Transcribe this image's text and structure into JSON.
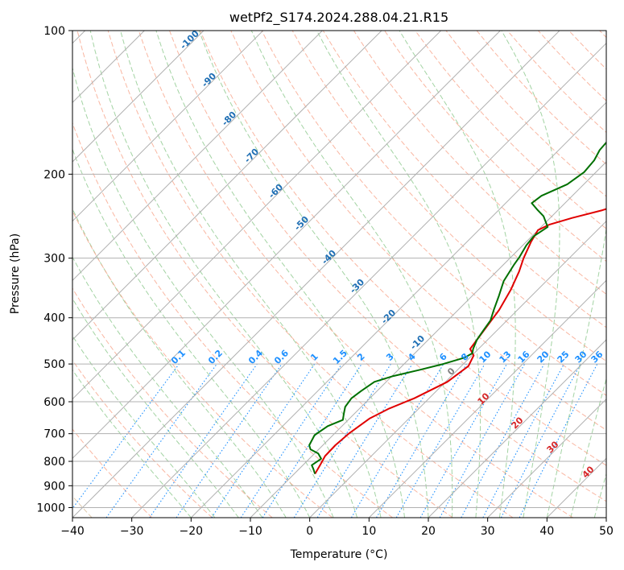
{
  "chart_data": {
    "type": "line",
    "title": "wetPf2_S174.2024.288.04.21.R15",
    "xlabel": "Temperature (°C)",
    "ylabel": "Pressure (hPa)",
    "xlim": [
      -40,
      50
    ],
    "ylim": [
      1050,
      100
    ],
    "y_scale": "log",
    "grid": true,
    "x_ticks": [
      "−40",
      "−30",
      "−20",
      "−10",
      "0",
      "10",
      "20",
      "30",
      "40",
      "50"
    ],
    "y_ticks": [
      {
        "p": 100,
        "label": "100"
      },
      {
        "p": 200,
        "label": "200"
      },
      {
        "p": 300,
        "label": "300"
      },
      {
        "p": 400,
        "label": "400"
      },
      {
        "p": 500,
        "label": "500"
      },
      {
        "p": 600,
        "label": "600"
      },
      {
        "p": 700,
        "label": "700"
      },
      {
        "p": 800,
        "label": "800"
      },
      {
        "p": 900,
        "label": "900"
      },
      {
        "p": 1000,
        "label": "1000"
      }
    ],
    "series": [
      {
        "color": "#e00000",
        "points": [
          [
            -6.5,
            850
          ],
          [
            -7.2,
            810
          ],
          [
            -7.8,
            780
          ],
          [
            -7.9,
            740
          ],
          [
            -7.6,
            700
          ],
          [
            -6.6,
            650
          ],
          [
            -5,
            620
          ],
          [
            -2.5,
            590
          ],
          [
            0.3,
            545
          ],
          [
            1.2,
            505
          ],
          [
            0.3,
            480
          ],
          [
            -1.4,
            465
          ],
          [
            -2.1,
            430
          ],
          [
            -3.1,
            385
          ],
          [
            -4.5,
            350
          ],
          [
            -6.2,
            320
          ],
          [
            -7.7,
            300
          ],
          [
            -9.2,
            277
          ],
          [
            -10,
            262
          ],
          [
            -9,
            255
          ],
          [
            -6.3,
            247
          ],
          [
            -2.5,
            238
          ],
          [
            1.1,
            227
          ],
          [
            2.7,
            218
          ],
          [
            4.2,
            206
          ],
          [
            6.7,
            193
          ],
          [
            10.5,
            180
          ],
          [
            14.5,
            165
          ],
          [
            18.1,
            150
          ],
          [
            19.3,
            143
          ],
          [
            22,
            135
          ],
          [
            25,
            127
          ],
          [
            27.4,
            120
          ],
          [
            29.4,
            113
          ],
          [
            31.3,
            107
          ],
          [
            33,
            102
          ],
          [
            33.8,
            100
          ]
        ]
      },
      {
        "color": "#007000",
        "points": [
          [
            -6.5,
            850
          ],
          [
            -7.6,
            830
          ],
          [
            -8.5,
            815
          ],
          [
            -8,
            790
          ],
          [
            -9.4,
            770
          ],
          [
            -11.4,
            755
          ],
          [
            -12.3,
            740
          ],
          [
            -13.1,
            705
          ],
          [
            -12.4,
            675
          ],
          [
            -10.9,
            655
          ],
          [
            -11.8,
            635
          ],
          [
            -12.7,
            615
          ],
          [
            -13.1,
            590
          ],
          [
            -12.7,
            570
          ],
          [
            -12,
            545
          ],
          [
            -9.8,
            530
          ],
          [
            -6.5,
            515
          ],
          [
            -3.4,
            500
          ],
          [
            -0.9,
            485
          ],
          [
            -0.3,
            475
          ],
          [
            -0.9,
            465
          ],
          [
            -1.8,
            445
          ],
          [
            -2.3,
            425
          ],
          [
            -2.8,
            405
          ],
          [
            -4,
            385
          ],
          [
            -5.5,
            360
          ],
          [
            -7.2,
            335
          ],
          [
            -8.2,
            310
          ],
          [
            -8.6,
            298
          ],
          [
            -9.4,
            282
          ],
          [
            -9.7,
            270
          ],
          [
            -8.9,
            258
          ],
          [
            -11.4,
            245
          ],
          [
            -13.4,
            238
          ],
          [
            -15.6,
            230
          ],
          [
            -15.2,
            222
          ],
          [
            -12.8,
            210
          ],
          [
            -12,
            198
          ],
          [
            -12.3,
            187
          ],
          [
            -13.1,
            178
          ],
          [
            -13.3,
            170
          ],
          [
            -12.1,
            162
          ],
          [
            -10.2,
            155
          ],
          [
            -8.6,
            146
          ],
          [
            -7.3,
            138
          ],
          [
            -5.9,
            129
          ],
          [
            -4.5,
            121
          ],
          [
            -3.2,
            114
          ],
          [
            -1.7,
            107
          ],
          [
            -0.3,
            101
          ],
          [
            0.2,
            100
          ]
        ]
      }
    ],
    "dry_adiabat_labels": [
      "-100",
      "-90",
      "-80",
      "-70",
      "-60",
      "-50",
      "-40",
      "-30",
      "-20",
      "-10"
    ],
    "moist_adiabat_labels": [
      "0",
      "10",
      "20",
      "30",
      "40"
    ],
    "mixing_ratio_labels": [
      "0.1",
      "0.2",
      "0.4",
      "0.6",
      "1",
      "1.5",
      "2",
      "3",
      "4",
      "6",
      "8",
      "10",
      "13",
      "16",
      "20",
      "25",
      "30",
      "36"
    ],
    "colors": {
      "isotherm": "#b0b0b0",
      "dry_adiabat": "#f7a48a",
      "moist_adiabat": "#8cc88c",
      "mixing_ratio": "#1e90ff",
      "dry_label": "#1f6fb4",
      "moist_label": "#d62728",
      "ccl_label": "#808080",
      "mixing_label": "#1e90ff",
      "thick_adiabat": "#d2b48c"
    }
  }
}
